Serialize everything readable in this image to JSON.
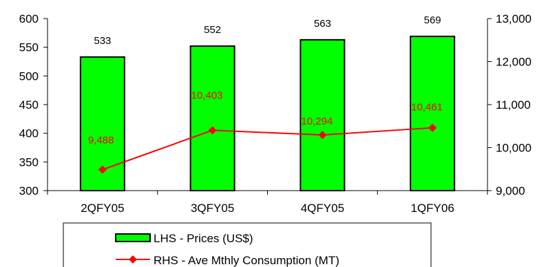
{
  "chart_data": {
    "type": "bar+line",
    "categories": [
      "2QFY05",
      "3QFY05",
      "4QFY05",
      "1QFY06"
    ],
    "left_axis": {
      "ylim": [
        300,
        600
      ],
      "ticks": [
        300,
        350,
        400,
        450,
        500,
        550,
        600
      ],
      "tick_labels": [
        "300",
        "350",
        "400",
        "450",
        "500",
        "550",
        "600"
      ]
    },
    "right_axis": {
      "ylim": [
        9000,
        13000
      ],
      "ticks": [
        9000,
        10000,
        11000,
        12000,
        13000
      ],
      "tick_labels": [
        "9,000",
        "10,000",
        "11,000",
        "12,000",
        "13,000"
      ]
    },
    "series": [
      {
        "name": "LHS - Prices (US$)",
        "type": "bar",
        "axis": "left",
        "color": "#00ff00",
        "values": [
          533,
          552,
          563,
          569
        ],
        "labels": [
          "533",
          "552",
          "563",
          "569"
        ]
      },
      {
        "name": "RHS - Ave Mthly Consumption (MT)",
        "type": "line",
        "axis": "right",
        "color": "#ff0000",
        "marker": "diamond",
        "values": [
          9488,
          10403,
          10294,
          10461
        ],
        "labels": [
          "9,488",
          "10,403",
          "10,294",
          "10,461"
        ]
      }
    ],
    "grid": false,
    "legend_position": "bottom"
  }
}
